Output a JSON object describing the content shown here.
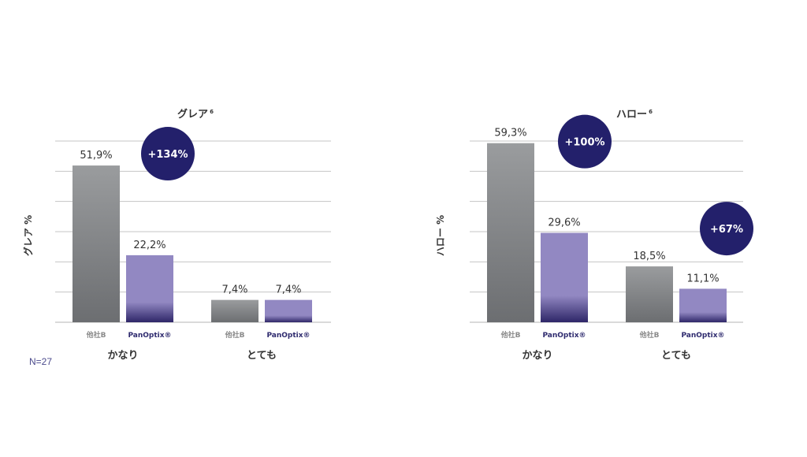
{
  "footnote": "N=27",
  "colors": {
    "competitor_top": "#9a9c9e",
    "competitor_bottom": "#6c6e71",
    "panoptix_top": "#9288c2",
    "panoptix_bottom": "#2e2668",
    "badge": "#23206b",
    "grid": "#c4c4c4",
    "text": "#333333",
    "brand_text": "#2e2a6e"
  },
  "chart_data": [
    {
      "type": "bar",
      "title": "グレア",
      "title_sup": "6",
      "ylabel": "グレア %",
      "ylim": [
        0,
        60
      ],
      "grid": true,
      "groups": [
        {
          "label": "かなり",
          "bars": [
            {
              "name": "他社B",
              "value": 51.9,
              "label": "51,9%"
            },
            {
              "name": "PanOptix®",
              "value": 22.2,
              "label": "22,2%"
            }
          ],
          "badge": "+134%"
        },
        {
          "label": "とても",
          "bars": [
            {
              "name": "他社B",
              "value": 7.4,
              "label": "7,4%"
            },
            {
              "name": "PanOptix®",
              "value": 7.4,
              "label": "7,4%"
            }
          ],
          "badge": ""
        }
      ]
    },
    {
      "type": "bar",
      "title": "ハロー",
      "title_sup": "6",
      "ylabel": "ハロー %",
      "ylim": [
        0,
        60
      ],
      "grid": true,
      "groups": [
        {
          "label": "かなり",
          "bars": [
            {
              "name": "他社B",
              "value": 59.3,
              "label": "59,3%"
            },
            {
              "name": "PanOptix®",
              "value": 29.6,
              "label": "29,6%"
            }
          ],
          "badge": "+100%"
        },
        {
          "label": "とても",
          "bars": [
            {
              "name": "他社B",
              "value": 18.5,
              "label": "18,5%"
            },
            {
              "name": "PanOptix®",
              "value": 11.1,
              "label": "11,1%"
            }
          ],
          "badge": "+67%"
        }
      ]
    }
  ]
}
